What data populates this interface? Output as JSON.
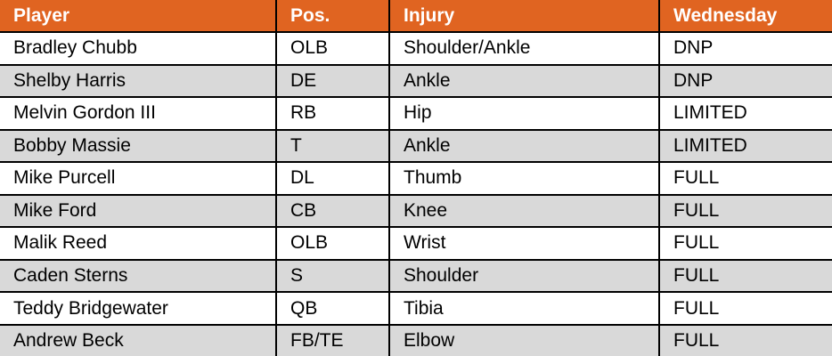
{
  "colors": {
    "header": "#E06421",
    "alt_row": "#D9D9D9"
  },
  "headers": [
    "Player",
    "Pos.",
    "Injury",
    "Wednesday"
  ],
  "rows": [
    [
      "Bradley Chubb",
      "OLB",
      "Shoulder/Ankle",
      "DNP"
    ],
    [
      "Shelby Harris",
      "DE",
      "Ankle",
      "DNP"
    ],
    [
      "Melvin Gordon III",
      "RB",
      "Hip",
      "LIMITED"
    ],
    [
      "Bobby Massie",
      "T",
      "Ankle",
      "LIMITED"
    ],
    [
      "Mike Purcell",
      "DL",
      "Thumb",
      "FULL"
    ],
    [
      "Mike Ford",
      "CB",
      "Knee",
      "FULL"
    ],
    [
      "Malik Reed",
      "OLB",
      "Wrist",
      "FULL"
    ],
    [
      "Caden Sterns",
      "S",
      "Shoulder",
      "FULL"
    ],
    [
      "Teddy Bridgewater",
      "QB",
      "Tibia",
      "FULL"
    ],
    [
      "Andrew Beck",
      "FB/TE",
      "Elbow",
      "FULL"
    ]
  ]
}
